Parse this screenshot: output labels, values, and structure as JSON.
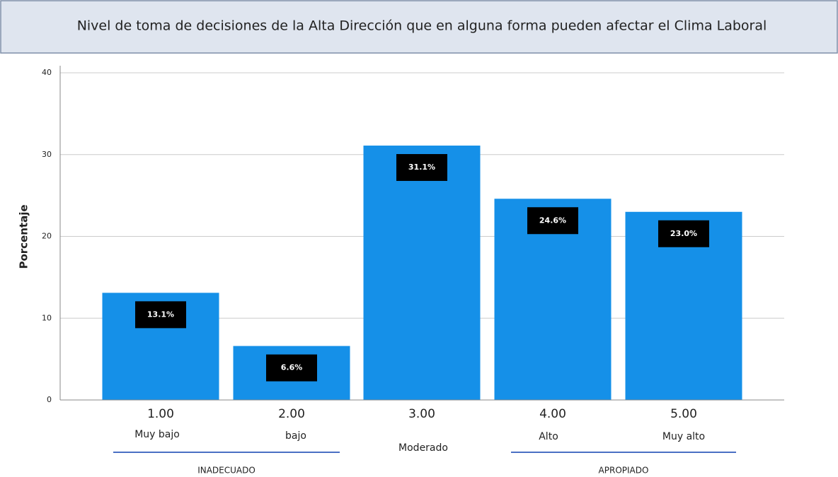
{
  "chart_data": {
    "type": "bar",
    "title": "Nivel de toma de decisiones de la Alta Dirección que en alguna forma pueden afectar el Clima Laboral",
    "ylabel": "Porcentaje",
    "categories": [
      "1.00",
      "2.00",
      "3.00",
      "4.00",
      "5.00"
    ],
    "sublabels": [
      "Muy bajo",
      "bajo",
      "Moderado",
      "Alto",
      "Muy alto"
    ],
    "values": [
      13.1,
      6.6,
      31.1,
      24.6,
      23.0
    ],
    "value_labels": [
      "13.1%",
      "6.6%",
      "31.1%",
      "24.6%",
      "23.0%"
    ],
    "color": "#1590e8",
    "ylim": [
      0,
      40
    ],
    "yticks": [
      0,
      10,
      20,
      30,
      40
    ],
    "grid": true,
    "groups": [
      "INADECUADO",
      "APROPIADO"
    ]
  }
}
